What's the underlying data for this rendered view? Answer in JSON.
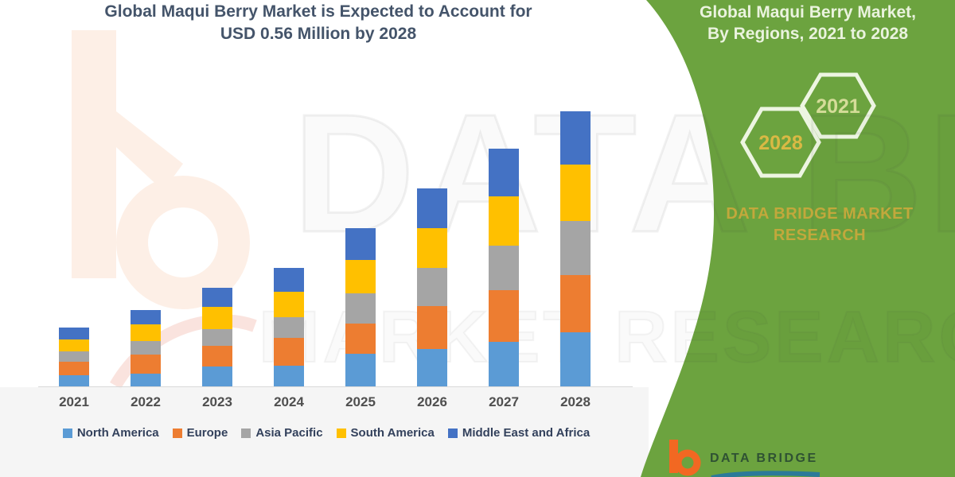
{
  "title": {
    "line1": "Global Maqui Berry Market is Expected to Account for",
    "line2": "USD 0.56 Million by 2028"
  },
  "watermark": {
    "row1": "DATA BRIDGE",
    "row2": "MARKET RESEARCH",
    "left_logo": "data-bridge-b-watermark"
  },
  "chart_data": {
    "type": "bar",
    "stacked": true,
    "title": "Global Maqui Berry Market is Expected to Account for USD 0.56 Million by 2028",
    "unit": "USD Million",
    "categories": [
      "2021",
      "2022",
      "2023",
      "2024",
      "2025",
      "2026",
      "2027",
      "2028"
    ],
    "series": [
      {
        "name": "North America",
        "color": "#5B9BD5",
        "values": [
          0.023,
          0.026,
          0.04,
          0.042,
          0.066,
          0.076,
          0.09,
          0.11
        ]
      },
      {
        "name": "Europe",
        "color": "#ED7D31",
        "values": [
          0.027,
          0.039,
          0.042,
          0.057,
          0.061,
          0.087,
          0.105,
          0.116
        ]
      },
      {
        "name": "Asia Pacific",
        "color": "#A5A5A5",
        "values": [
          0.021,
          0.027,
          0.034,
          0.042,
          0.061,
          0.078,
          0.09,
          0.11
        ]
      },
      {
        "name": "South America",
        "color": "#FFC000",
        "values": [
          0.024,
          0.034,
          0.045,
          0.052,
          0.068,
          0.081,
          0.1,
          0.115
        ]
      },
      {
        "name": "Middle East and Africa",
        "color": "#4472C4",
        "values": [
          0.024,
          0.029,
          0.039,
          0.048,
          0.065,
          0.081,
          0.097,
          0.108
        ]
      }
    ],
    "totals_estimated": [
      0.119,
      0.155,
      0.2,
      0.241,
      0.321,
      0.403,
      0.482,
      0.559
    ],
    "ylim": [
      0,
      0.6
    ],
    "grid": false,
    "y_axis_visible": false,
    "legend_position": "bottom"
  },
  "side_panel": {
    "heading_line1": "Global Maqui Berry Market,",
    "heading_line2": "By Regions, 2021 to 2028",
    "hexagon_back_label": "2028",
    "hexagon_front_label": "2021",
    "brand_line1": "DATA BRIDGE MARKET",
    "brand_line2": "RESEARCH",
    "colors": {
      "panel_green": "#6CA33F",
      "heading_text": "#EAF3DE",
      "hexagon_outline": "#EDF5E2",
      "hex_2028_text": "#D9B944",
      "hex_2021_text": "#D5DC99",
      "brand_gold": "#C2A83C"
    }
  },
  "footer_logo": {
    "brand_text": "DATA BRIDGE",
    "icon": "data-bridge-b-icon",
    "icon_color": "#F26822",
    "text_color": "#2F5233"
  },
  "layout_colors": {
    "axis_line": "#D9D9D9",
    "year_label_text": "#4F4F4F",
    "legend_text": "#33415C",
    "title_text": "#44546A"
  }
}
